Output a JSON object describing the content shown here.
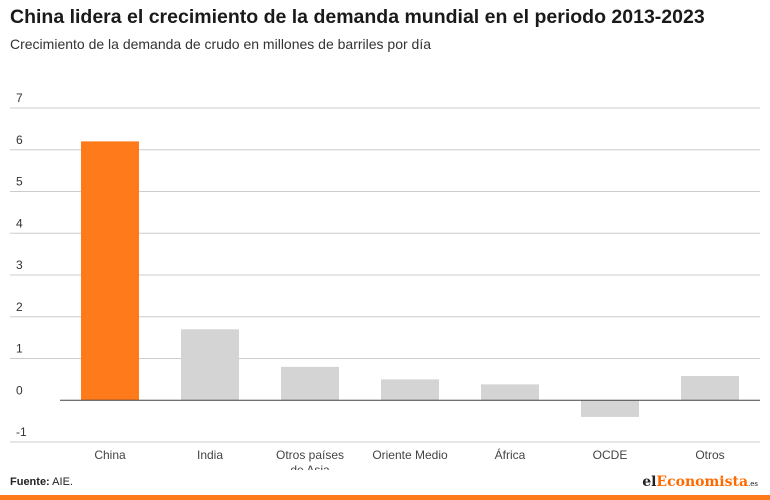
{
  "title": "China lidera el crecimiento de la demanda mundial en el periodo 2013-2023",
  "subtitle": "Crecimiento de la demanda de crudo en millones de barriles por día",
  "source_label": "Fuente:",
  "source_text": " AIE.",
  "brand": {
    "part1": "el",
    "part2": "Economista",
    "part3": ".es"
  },
  "colors": {
    "highlight": "#ff7a1a",
    "default": "#d4d4d4",
    "grid": "#cccccc",
    "zero": "#444444"
  },
  "chart_data": {
    "type": "bar",
    "title": "China lidera el crecimiento de la demanda mundial en el periodo 2013-2023",
    "subtitle": "Crecimiento de la demanda de crudo en millones de barriles por día",
    "categories": [
      [
        "China"
      ],
      [
        "India"
      ],
      [
        "Otros países",
        "de Asia"
      ],
      [
        "Oriente Medio"
      ],
      [
        "África"
      ],
      [
        "OCDE"
      ],
      [
        "Otros"
      ]
    ],
    "values": [
      6.2,
      1.7,
      0.8,
      0.5,
      0.38,
      -0.4,
      0.58
    ],
    "highlight_index": 0,
    "yticks": [
      7,
      6,
      5,
      4,
      3,
      2,
      1,
      0,
      -1
    ],
    "ylim": [
      -1,
      7
    ],
    "grid": true
  }
}
